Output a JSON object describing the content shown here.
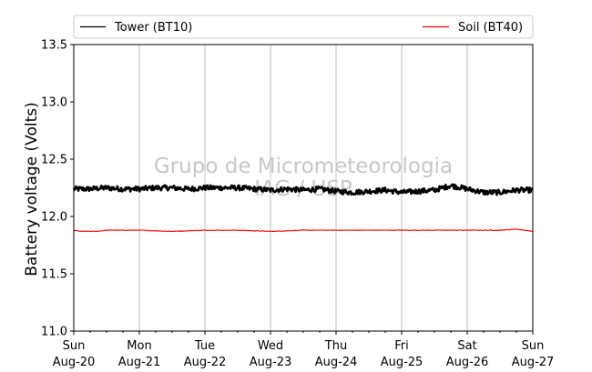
{
  "chart_data": {
    "type": "line",
    "title": "",
    "xlabel": "",
    "ylabel": "Battery voltage (Volts)",
    "ylim": [
      11.0,
      13.5
    ],
    "yticks": [
      11.0,
      11.5,
      12.0,
      12.5,
      13.0,
      13.5
    ],
    "xlim": [
      0,
      7
    ],
    "xticks": [
      {
        "day": "Sun",
        "date": "Aug-20"
      },
      {
        "day": "Mon",
        "date": "Aug-21"
      },
      {
        "day": "Tue",
        "date": "Aug-22"
      },
      {
        "day": "Wed",
        "date": "Aug-23"
      },
      {
        "day": "Thu",
        "date": "Aug-24"
      },
      {
        "day": "Fri",
        "date": "Aug-25"
      },
      {
        "day": "Sat",
        "date": "Aug-26"
      },
      {
        "day": "Sun",
        "date": "Aug-27"
      }
    ],
    "grid": "vertical",
    "legend_position": "top",
    "series": [
      {
        "name": "Tower (BT10)",
        "color": "#000000",
        "x": [
          0,
          0.25,
          0.5,
          0.75,
          1.0,
          1.25,
          1.5,
          1.75,
          2.0,
          2.25,
          2.5,
          2.75,
          3.0,
          3.25,
          3.5,
          3.75,
          4.0,
          4.25,
          4.5,
          4.75,
          5.0,
          5.25,
          5.5,
          5.75,
          6.0,
          6.25,
          6.5,
          6.75,
          7.0
        ],
        "values": [
          12.24,
          12.24,
          12.25,
          12.24,
          12.24,
          12.25,
          12.25,
          12.24,
          12.25,
          12.25,
          12.25,
          12.24,
          12.23,
          12.24,
          12.23,
          12.24,
          12.22,
          12.21,
          12.22,
          12.23,
          12.21,
          12.22,
          12.23,
          12.27,
          12.24,
          12.21,
          12.21,
          12.23,
          12.23
        ]
      },
      {
        "name": "Soil (BT40)",
        "color": "#ff0000",
        "x": [
          0,
          0.1,
          0.35,
          0.5,
          1.0,
          1.5,
          2.0,
          2.5,
          3.0,
          3.5,
          4.0,
          4.5,
          5.0,
          5.5,
          6.0,
          6.5,
          6.75,
          7.0
        ],
        "values": [
          11.88,
          11.87,
          11.87,
          11.88,
          11.88,
          11.87,
          11.88,
          11.88,
          11.87,
          11.88,
          11.88,
          11.88,
          11.88,
          11.88,
          11.88,
          11.88,
          11.89,
          11.87
        ]
      }
    ],
    "watermark": [
      "Grupo de Micrometeorologia",
      "IAG / USP"
    ]
  }
}
